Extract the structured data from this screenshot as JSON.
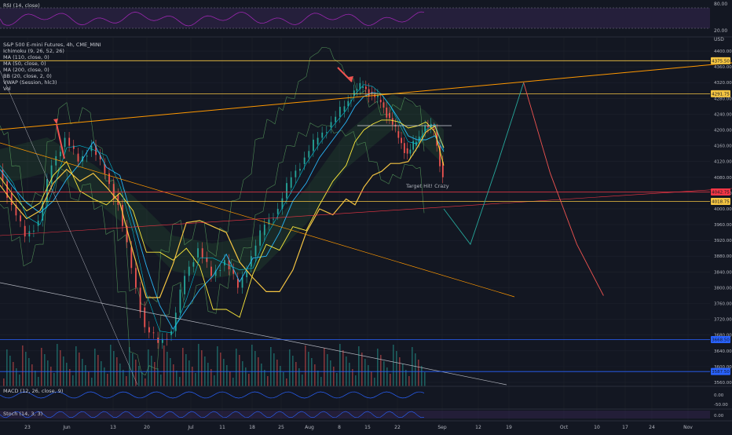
{
  "panes": {
    "rsi": {
      "title": "RSI (14, close)",
      "ticks": [
        "80.00",
        "20.00"
      ]
    },
    "main": {
      "symbol": "S&P 500 E-mini Futures, 4h, CME_MINI",
      "indicators": [
        "Ichimoku (9, 26, 52, 26)",
        "MA (110, close, 0)",
        "MA (50, close, 0)",
        "MA (200, close, 0)",
        "BB (20, close, 2, 0)",
        "VWAP (Session, hlc3)",
        "Vol"
      ],
      "currency": "USD",
      "annotation": "Target Hit! Crazy"
    },
    "macd": {
      "title": "MACD (12, 26, close, 9)",
      "ticks": [
        "0.00",
        "-50.00"
      ]
    },
    "stoch": {
      "title": "Stoch (14, 3, 3)",
      "ticks": [
        "0.00"
      ]
    }
  },
  "chart_data": {
    "type": "line",
    "title": "S&P 500 E-mini Futures, 4h, CME_MINI",
    "y_ticks": [
      "4400.00",
      "4360.00",
      "4320.00",
      "4280.00",
      "4240.00",
      "4200.00",
      "4160.00",
      "4120.00",
      "4080.00",
      "4040.00",
      "4000.00",
      "3960.00",
      "3920.00",
      "3880.00",
      "3840.00",
      "3800.00",
      "3760.00",
      "3720.00",
      "3680.00",
      "3640.00",
      "3600.00",
      "3560.00"
    ],
    "y_tick_values": [
      4400,
      4360,
      4320,
      4280,
      4240,
      4200,
      4160,
      4120,
      4080,
      4040,
      4000,
      3960,
      3920,
      3880,
      3840,
      3800,
      3760,
      3720,
      3680,
      3640,
      3600,
      3560
    ],
    "ylim": [
      3550,
      4410
    ],
    "x_ticks": [
      "23",
      "Jun",
      "13",
      "20",
      "Jul",
      "11",
      "18",
      "25",
      "Aug",
      "8",
      "15",
      "22",
      "Sep",
      "12",
      "19",
      "Oct",
      "10",
      "17",
      "24",
      "Nov"
    ],
    "price_tags": [
      {
        "label": "4375.50",
        "value": 4375.5,
        "color": "#f5c542"
      },
      {
        "label": "4291.75",
        "value": 4291.75,
        "color": "#f5c542"
      },
      {
        "label": "4042.75",
        "value": 4042.75,
        "color": "#f23645"
      },
      {
        "label": "4018.75",
        "value": 4018.75,
        "color": "#f5c542"
      },
      {
        "label": "3668.50",
        "value": 3668.5,
        "color": "#2962ff"
      },
      {
        "label": "3587.50",
        "value": 3587.5,
        "color": "#2962ff"
      }
    ],
    "price_path": [
      [
        0,
        4100
      ],
      [
        3,
        4010
      ],
      [
        6,
        3930
      ],
      [
        9,
        3970
      ],
      [
        12,
        4110
      ],
      [
        15,
        4180
      ],
      [
        18,
        4120
      ],
      [
        21,
        4160
      ],
      [
        24,
        4090
      ],
      [
        27,
        4010
      ],
      [
        30,
        3850
      ],
      [
        33,
        3700
      ],
      [
        36,
        3660
      ],
      [
        39,
        3690
      ],
      [
        42,
        3830
      ],
      [
        45,
        3900
      ],
      [
        48,
        3830
      ],
      [
        51,
        3870
      ],
      [
        54,
        3800
      ],
      [
        57,
        3880
      ],
      [
        60,
        3960
      ],
      [
        63,
        4000
      ],
      [
        66,
        4080
      ],
      [
        69,
        4130
      ],
      [
        72,
        4180
      ],
      [
        75,
        4220
      ],
      [
        78,
        4260
      ],
      [
        80,
        4300
      ],
      [
        82,
        4310
      ],
      [
        84,
        4290
      ],
      [
        86,
        4270
      ],
      [
        88,
        4230
      ],
      [
        90,
        4180
      ],
      [
        92,
        4140
      ],
      [
        94,
        4170
      ],
      [
        96,
        4210
      ],
      [
        98,
        4200
      ],
      [
        100,
        4080
      ]
    ],
    "projection_up": [
      [
        100,
        4000
      ],
      [
        106,
        3910
      ],
      [
        112,
        4110
      ],
      [
        118,
        4320
      ]
    ],
    "projection_down": [
      [
        118,
        4320
      ],
      [
        124,
        4090
      ],
      [
        130,
        3910
      ],
      [
        136,
        3780
      ]
    ],
    "x_range": [
      0,
      160
    ]
  }
}
